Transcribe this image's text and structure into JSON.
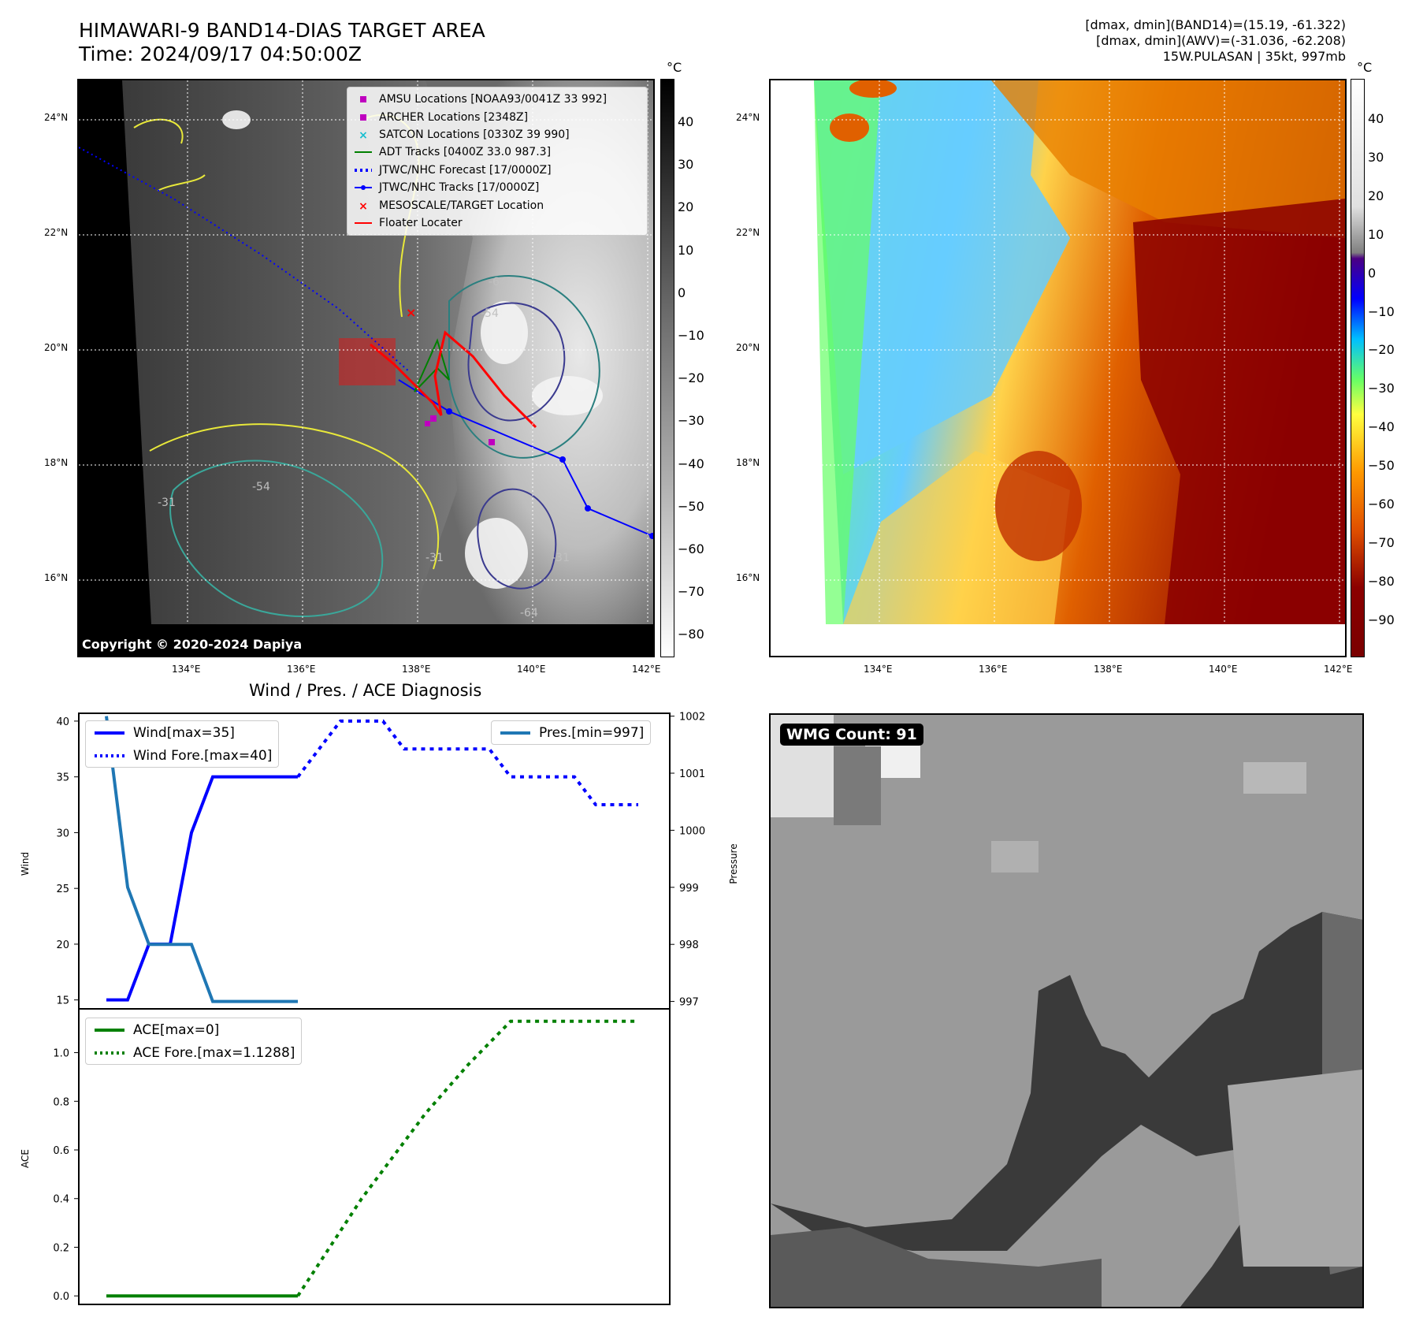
{
  "header": {
    "title_line1": "HIMAWARI-9 BAND14-DIAS TARGET AREA",
    "title_line2": "Time: 2024/09/17 04:50:00Z",
    "info_line1": "[dmax, dmin](BAND14)=(15.19, -61.322)",
    "info_line2": "[dmax, dmin](AWV)=(-31.036, -62.208)",
    "info_line3": "15W.PULASAN | 35kt, 997mb"
  },
  "left_map": {
    "copyright": "Copyright © 2020-2024 Dapiya",
    "lat_labels": [
      "24°N",
      "22°N",
      "20°N",
      "18°N",
      "16°N"
    ],
    "lon_labels": [
      "134°E",
      "136°E",
      "138°E",
      "140°E",
      "142°E"
    ],
    "colorbar_unit": "°C",
    "colorbar_ticks": [
      "40",
      "30",
      "20",
      "10",
      "0",
      "−10",
      "−20",
      "−30",
      "−40",
      "−50",
      "−60",
      "−70",
      "−80"
    ],
    "legend": [
      {
        "label": "AMSU Locations [NOAA93/0041Z 33 992]",
        "symbol": "square",
        "color": "#bf00bf"
      },
      {
        "label": "ARCHER Locations [2348Z]",
        "symbol": "square",
        "color": "#bf00bf"
      },
      {
        "label": "SATCON Locations [0330Z 39 990]",
        "symbol": "x",
        "color": "#17becf"
      },
      {
        "label": "ADT Tracks [0400Z 33.0 987.3]",
        "symbol": "line",
        "color": "#008000"
      },
      {
        "label": "JTWC/NHC Forecast [17/0000Z]",
        "symbol": "dotted",
        "color": "#0000ff"
      },
      {
        "label": "JTWC/NHC Tracks [17/0000Z]",
        "symbol": "line-dot",
        "color": "#0000ff"
      },
      {
        "label": "MESOSCALE/TARGET Location",
        "symbol": "x",
        "color": "#ff0000"
      },
      {
        "label": "Floater Locater",
        "symbol": "line",
        "color": "#ff0000"
      }
    ],
    "contour_labels": [
      "-31",
      "-54",
      "-64",
      "-54",
      "-31",
      "-54",
      "-64",
      "-31"
    ]
  },
  "right_map": {
    "lat_labels": [
      "24°N",
      "22°N",
      "20°N",
      "18°N",
      "16°N"
    ],
    "lon_labels": [
      "134°E",
      "136°E",
      "138°E",
      "140°E",
      "142°E"
    ],
    "colorbar_unit": "°C",
    "colorbar_ticks": [
      "40",
      "30",
      "20",
      "10",
      "0",
      "−10",
      "−20",
      "−30",
      "−40",
      "−50",
      "−60",
      "−70",
      "−80",
      "−90"
    ]
  },
  "diagnosis": {
    "title": "Wind / Pres. / ACE Diagnosis",
    "wind_ylabel": "Wind",
    "pres_ylabel": "Pressure",
    "ace_ylabel": "ACE",
    "legend_wind": [
      {
        "label": "Wind[max=35]",
        "style": "solid",
        "color": "#0000ff"
      },
      {
        "label": "Wind Fore.[max=40]",
        "style": "dotted",
        "color": "#0000ff"
      }
    ],
    "legend_pres": [
      {
        "label": "Pres.[min=997]",
        "style": "solid",
        "color": "#1f77b4"
      }
    ],
    "legend_ace": [
      {
        "label": "ACE[max=0]",
        "style": "solid",
        "color": "#008000"
      },
      {
        "label": "ACE Fore.[max=1.1288]",
        "style": "dotted",
        "color": "#008000"
      }
    ]
  },
  "wmg": {
    "badge": "WMG Count: 91"
  },
  "chart_data": [
    {
      "type": "line",
      "title": "Wind / Pres. / ACE Diagnosis",
      "ylabel": "Wind",
      "ylim": [
        14.2,
        40.7
      ],
      "ticks": [
        15,
        20,
        25,
        30,
        35,
        40
      ],
      "x": [
        0,
        1,
        2,
        3,
        4,
        5,
        6,
        7,
        8,
        9,
        10,
        11,
        12,
        13,
        14,
        15,
        16,
        17,
        18,
        19,
        20,
        21,
        22,
        23,
        24,
        25
      ],
      "series": [
        {
          "name": "Wind[max=35]",
          "style": "solid",
          "values": [
            15,
            15,
            20,
            20,
            30,
            35,
            35,
            35,
            35,
            35,
            null,
            null,
            null,
            null,
            null,
            null,
            null,
            null,
            null,
            null,
            null,
            null,
            null,
            null,
            null,
            null
          ]
        },
        {
          "name": "Wind Fore.[max=40]",
          "style": "dotted",
          "values": [
            null,
            null,
            null,
            null,
            null,
            null,
            null,
            null,
            null,
            35,
            37.5,
            40,
            40,
            40,
            37.5,
            37.5,
            37.5,
            37.5,
            37.5,
            35,
            35,
            35,
            35,
            32.5,
            32.5,
            32.5
          ]
        }
      ]
    },
    {
      "type": "line",
      "ylabel": "Pressure",
      "ylim": [
        996.87,
        1002.05
      ],
      "ticks": [
        997,
        998,
        999,
        1000,
        1001,
        1002
      ],
      "x": [
        0,
        1,
        2,
        3,
        4,
        5,
        6,
        7,
        8,
        9
      ],
      "series": [
        {
          "name": "Pres.[min=997]",
          "style": "solid",
          "values": [
            1002,
            999,
            998,
            998,
            998,
            997,
            997,
            997,
            997,
            997
          ]
        }
      ]
    },
    {
      "type": "line",
      "ylabel": "ACE",
      "ylim": [
        -0.035,
        1.18
      ],
      "ticks": [
        0.0,
        0.2,
        0.4,
        0.6,
        0.8,
        1.0
      ],
      "x": [
        0,
        9,
        12,
        15,
        17,
        19,
        25
      ],
      "series": [
        {
          "name": "ACE[max=0]",
          "style": "solid",
          "values": [
            0,
            0,
            null,
            null,
            null,
            null,
            null
          ]
        },
        {
          "name": "ACE Fore.[max=1.1288]",
          "style": "dotted",
          "values": [
            null,
            0,
            0.4,
            0.75,
            0.95,
            1.1288,
            1.1288
          ]
        }
      ]
    }
  ]
}
